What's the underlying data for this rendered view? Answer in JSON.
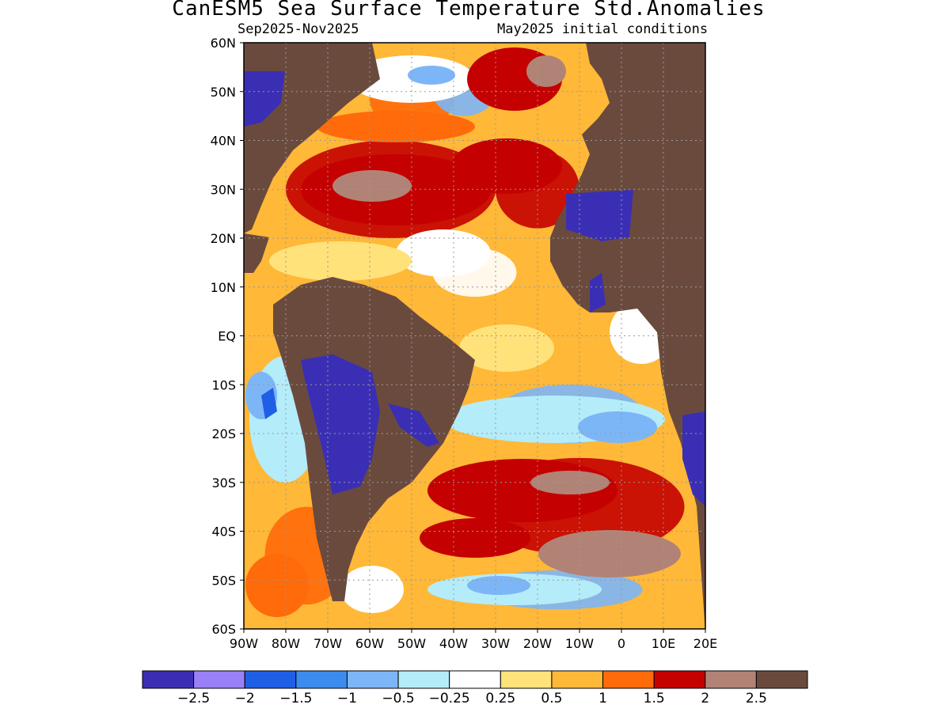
{
  "header": {
    "title": "CanESM5 Sea Surface Temperature Std.Anomalies",
    "subtitle_left": "Sep2025-Nov2025",
    "subtitle_right": "May2025 initial conditions"
  },
  "map": {
    "projection": "lat-lon",
    "lon_range": [
      -90,
      20
    ],
    "lat_range": [
      -60,
      60
    ],
    "land_color": "#6b4a3e",
    "grid": "dotted",
    "lat_ticks": [
      {
        "value": 60,
        "label": "60N"
      },
      {
        "value": 50,
        "label": "50N"
      },
      {
        "value": 40,
        "label": "40N"
      },
      {
        "value": 30,
        "label": "30N"
      },
      {
        "value": 20,
        "label": "20N"
      },
      {
        "value": 10,
        "label": "10N"
      },
      {
        "value": 0,
        "label": "EQ"
      },
      {
        "value": -10,
        "label": "10S"
      },
      {
        "value": -20,
        "label": "20S"
      },
      {
        "value": -30,
        "label": "30S"
      },
      {
        "value": -40,
        "label": "40S"
      },
      {
        "value": -50,
        "label": "50S"
      },
      {
        "value": -60,
        "label": "60S"
      }
    ],
    "lon_ticks": [
      {
        "value": -90,
        "label": "90W"
      },
      {
        "value": -80,
        "label": "80W"
      },
      {
        "value": -70,
        "label": "70W"
      },
      {
        "value": -60,
        "label": "60W"
      },
      {
        "value": -50,
        "label": "50W"
      },
      {
        "value": -40,
        "label": "40W"
      },
      {
        "value": -30,
        "label": "30W"
      },
      {
        "value": -20,
        "label": "20W"
      },
      {
        "value": -10,
        "label": "10W"
      },
      {
        "value": 0,
        "label": "0"
      },
      {
        "value": 10,
        "label": "10E"
      },
      {
        "value": 20,
        "label": "20E"
      }
    ],
    "anomaly_regions": [
      {
        "lon": [
          -35,
          0
        ],
        "lat": [
          -8,
          18
        ],
        "value": 0.75
      },
      {
        "lon": [
          -45,
          -25
        ],
        "lat": [
          8,
          18
        ],
        "value": 0.1
      },
      {
        "lon": [
          -80,
          -30
        ],
        "lat": [
          20,
          40
        ],
        "value": 1.75
      },
      {
        "lon": [
          -30,
          -10
        ],
        "lat": [
          22,
          38
        ],
        "value": 1.6
      },
      {
        "lon": [
          -13,
          -3
        ],
        "lat": [
          17,
          30
        ],
        "value": -2.6
      },
      {
        "lon": [
          -88,
          -70
        ],
        "lat": [
          -25,
          -5
        ],
        "value": -0.6
      },
      {
        "lon": [
          -30,
          5
        ],
        "lat": [
          -22,
          -10
        ],
        "value": -0.7
      },
      {
        "lon": [
          -35,
          15
        ],
        "lat": [
          -45,
          -25
        ],
        "value": 1.9
      },
      {
        "lon": [
          -35,
          5
        ],
        "lat": [
          -56,
          -48
        ],
        "value": -0.9
      },
      {
        "lon": [
          -85,
          -65
        ],
        "lat": [
          -55,
          -35
        ],
        "value": 1.2
      },
      {
        "lon": [
          -60,
          -40
        ],
        "lat": [
          42,
          55
        ],
        "value": 1.1
      },
      {
        "lon": [
          -45,
          -30
        ],
        "lat": [
          45,
          55
        ],
        "value": -0.6
      },
      {
        "lon": [
          -90,
          -80
        ],
        "lat": [
          45,
          55
        ],
        "value": -2.6
      }
    ]
  },
  "colorbar": {
    "colors": [
      "#3a2fb4",
      "#9a80f8",
      "#1f5fe6",
      "#3c8cf0",
      "#7cb6f7",
      "#b4ecfa",
      "#ffffff",
      "#ffe27a",
      "#ffb837",
      "#ff6a0a",
      "#c40000",
      "#b18376",
      "#6b4a3e"
    ],
    "labels": [
      "−2.5",
      "−2",
      "−1.5",
      "−1",
      "−0.5",
      "−0.25",
      "0.25",
      "0.5",
      "1",
      "1.5",
      "2",
      "2.5"
    ]
  }
}
